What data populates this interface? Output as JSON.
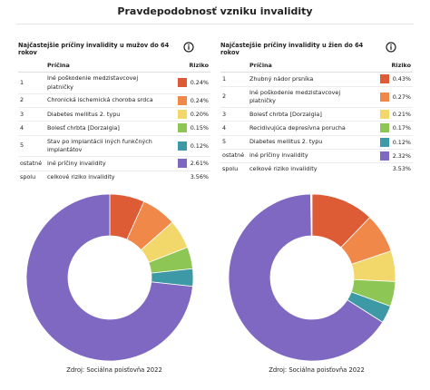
{
  "title": "Pravdepodobnosť vzniku invalidity",
  "chart_data": [
    {
      "type": "donut",
      "title": "Najčastejšie príčiny invalidity u mužov do 64 rokov",
      "columns": [
        "Príčina",
        "Riziko"
      ],
      "ranks": [
        "1",
        "2",
        "3",
        "4",
        "5",
        "ostatné"
      ],
      "categories": [
        "Iné poškodenie medzistavcovej platničky",
        "Chronická ischemická choroba srdca",
        "Diabetes mellitus 2. typu",
        "Bolesť chrbta [Dorzalgia]",
        "Stav po implantácii iných funkčných implantátov",
        "iné príčiny invalidity"
      ],
      "values": [
        0.24,
        0.24,
        0.2,
        0.15,
        0.12,
        2.61
      ],
      "value_labels": [
        "0.24%",
        "0.24%",
        "0.20%",
        "0.15%",
        "0.12%",
        "2.61%"
      ],
      "colors": [
        "#dd5c36",
        "#f0884a",
        "#f2d76b",
        "#8ec655",
        "#3e99a7",
        "#7f68c1"
      ],
      "total": {
        "rank": "spolu",
        "label": "celkové riziko invalidity",
        "value": 3.56,
        "value_label": "3.56%"
      },
      "source": "Zdroj: Sociálna poisťovňa 2022"
    },
    {
      "type": "donut",
      "title": "Najčastejšie príčiny invalidity u žien do 64 rokov",
      "columns": [
        "Príčina",
        "Riziko"
      ],
      "ranks": [
        "1",
        "2",
        "3",
        "4",
        "5",
        "ostatné"
      ],
      "categories": [
        "Zhubný nádor prsníka",
        "Iné poškodenie medzistavcovej platničky",
        "Bolesť chrbta [Dorzalgia]",
        "Recidivujúca depresívna porucha",
        "Diabetes mellitus 2. typu",
        "iné príčiny invalidity"
      ],
      "values": [
        0.43,
        0.27,
        0.21,
        0.17,
        0.12,
        2.32
      ],
      "value_labels": [
        "0.43%",
        "0.27%",
        "0.21%",
        "0.17%",
        "0.12%",
        "2.32%"
      ],
      "colors": [
        "#dd5c36",
        "#f0884a",
        "#f2d76b",
        "#8ec655",
        "#3e99a7",
        "#7f68c1"
      ],
      "total": {
        "rank": "spolu",
        "label": "celkové riziko invalidity",
        "value": 3.53,
        "value_label": "3.53%"
      },
      "source": "Zdroj: Sociálna poisťovňa 2022"
    }
  ]
}
